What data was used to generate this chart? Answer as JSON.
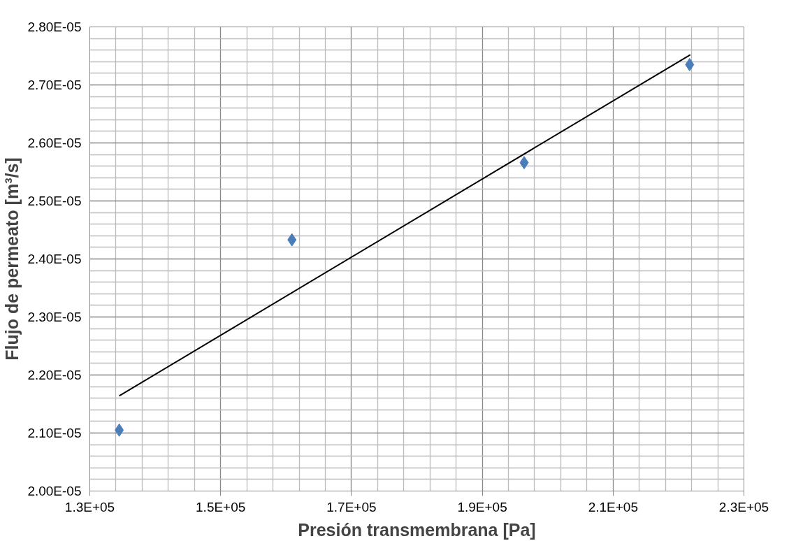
{
  "chart_data": {
    "type": "scatter",
    "xlabel": "Presión transmembrana [Pa]",
    "ylabel": "Flujo de permeato [m³/s]",
    "xlim": [
      130000,
      230000
    ],
    "xticks": [
      {
        "value": 130000,
        "label": "1.3E+05"
      },
      {
        "value": 150000,
        "label": "1.5E+05"
      },
      {
        "value": 170000,
        "label": "1.7E+05"
      },
      {
        "value": 190000,
        "label": "1.9E+05"
      },
      {
        "value": 210000,
        "label": "2.1E+05"
      },
      {
        "value": 230000,
        "label": "2.3E+05"
      }
    ],
    "ylim": [
      2e-05,
      2.8e-05
    ],
    "yticks": [
      {
        "value": 2e-05,
        "label": "2.00E-05"
      },
      {
        "value": 2.1e-05,
        "label": "2.10E-05"
      },
      {
        "value": 2.2e-05,
        "label": "2.20E-05"
      },
      {
        "value": 2.3e-05,
        "label": "2.30E-05"
      },
      {
        "value": 2.4e-05,
        "label": "2.40E-05"
      },
      {
        "value": 2.5e-05,
        "label": "2.50E-05"
      },
      {
        "value": 2.6e-05,
        "label": "2.60E-05"
      },
      {
        "value": 2.7e-05,
        "label": "2.70E-05"
      },
      {
        "value": 2.8e-05,
        "label": "2.80E-05"
      }
    ],
    "grid": true,
    "series": [
      {
        "marker": "diamond",
        "color": "#4a7ebb",
        "x": [
          134500,
          160900,
          196400,
          221700
        ],
        "values": [
          2.105e-05,
          2.433e-05,
          2.566e-05,
          2.735e-05
        ]
      },
      {
        "type": "line",
        "marker": "none",
        "line_style": "solid",
        "color": "#000000",
        "x": [
          134500,
          221800
        ],
        "values": [
          2.164e-05,
          2.752e-05
        ]
      }
    ]
  }
}
